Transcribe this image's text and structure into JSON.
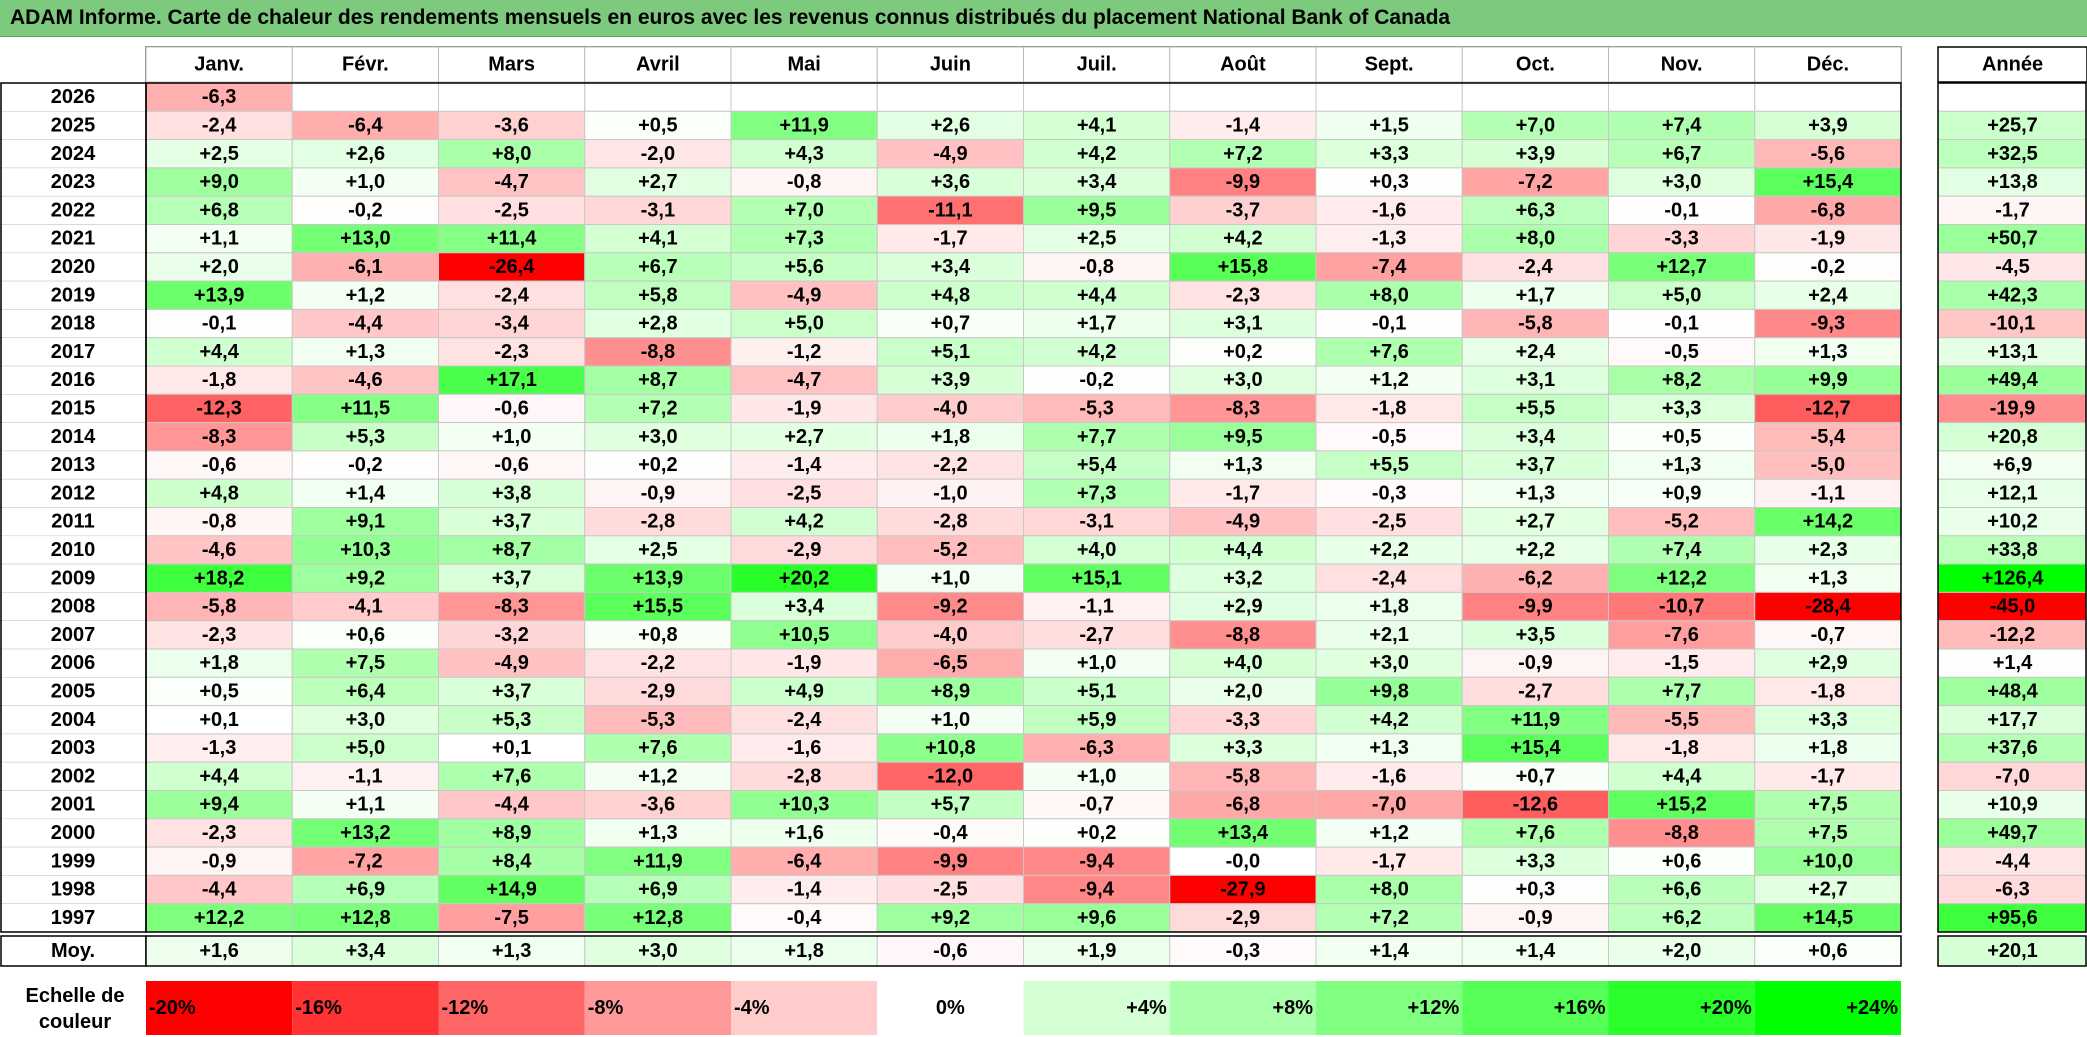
{
  "title": "ADAM Informe. Carte de chaleur des rendements mensuels en euros avec les revenus connus distribués du placement National Bank of Canada",
  "chart_data": {
    "type": "heatmap",
    "months": [
      "Janv.",
      "Févr.",
      "Mars",
      "Avril",
      "Mai",
      "Juin",
      "Juil.",
      "Août",
      "Sept.",
      "Oct.",
      "Nov.",
      "Déc."
    ],
    "year_label": "Année",
    "rows": [
      {
        "year": "2026",
        "values": [
          "-6,3",
          "",
          "",
          "",
          "",
          "",
          "",
          "",
          "",
          "",
          "",
          ""
        ],
        "annual": ""
      },
      {
        "year": "2025",
        "values": [
          "-2,4",
          "-6,4",
          "-3,6",
          "+0,5",
          "+11,9",
          "+2,6",
          "+4,1",
          "-1,4",
          "+1,5",
          "+7,0",
          "+7,4",
          "+3,9"
        ],
        "annual": "+25,7"
      },
      {
        "year": "2024",
        "values": [
          "+2,5",
          "+2,6",
          "+8,0",
          "-2,0",
          "+4,3",
          "-4,9",
          "+4,2",
          "+7,2",
          "+3,3",
          "+3,9",
          "+6,7",
          "-5,6"
        ],
        "annual": "+32,5"
      },
      {
        "year": "2023",
        "values": [
          "+9,0",
          "+1,0",
          "-4,7",
          "+2,7",
          "-0,8",
          "+3,6",
          "+3,4",
          "-9,9",
          "+0,3",
          "-7,2",
          "+3,0",
          "+15,4"
        ],
        "annual": "+13,8"
      },
      {
        "year": "2022",
        "values": [
          "+6,8",
          "-0,2",
          "-2,5",
          "-3,1",
          "+7,0",
          "-11,1",
          "+9,5",
          "-3,7",
          "-1,6",
          "+6,3",
          "-0,1",
          "-6,8"
        ],
        "annual": "-1,7"
      },
      {
        "year": "2021",
        "values": [
          "+1,1",
          "+13,0",
          "+11,4",
          "+4,1",
          "+7,3",
          "-1,7",
          "+2,5",
          "+4,2",
          "-1,3",
          "+8,0",
          "-3,3",
          "-1,9"
        ],
        "annual": "+50,7"
      },
      {
        "year": "2020",
        "values": [
          "+2,0",
          "-6,1",
          "-26,4",
          "+6,7",
          "+5,6",
          "+3,4",
          "-0,8",
          "+15,8",
          "-7,4",
          "-2,4",
          "+12,7",
          "-0,2"
        ],
        "annual": "-4,5"
      },
      {
        "year": "2019",
        "values": [
          "+13,9",
          "+1,2",
          "-2,4",
          "+5,8",
          "-4,9",
          "+4,8",
          "+4,4",
          "-2,3",
          "+8,0",
          "+1,7",
          "+5,0",
          "+2,4"
        ],
        "annual": "+42,3"
      },
      {
        "year": "2018",
        "values": [
          "-0,1",
          "-4,4",
          "-3,4",
          "+2,8",
          "+5,0",
          "+0,7",
          "+1,7",
          "+3,1",
          "-0,1",
          "-5,8",
          "-0,1",
          "-9,3"
        ],
        "annual": "-10,1"
      },
      {
        "year": "2017",
        "values": [
          "+4,4",
          "+1,3",
          "-2,3",
          "-8,8",
          "-1,2",
          "+5,1",
          "+4,2",
          "+0,2",
          "+7,6",
          "+2,4",
          "-0,5",
          "+1,3"
        ],
        "annual": "+13,1"
      },
      {
        "year": "2016",
        "values": [
          "-1,8",
          "-4,6",
          "+17,1",
          "+8,7",
          "-4,7",
          "+3,9",
          "-0,2",
          "+3,0",
          "+1,2",
          "+3,1",
          "+8,2",
          "+9,9"
        ],
        "annual": "+49,4"
      },
      {
        "year": "2015",
        "values": [
          "-12,3",
          "+11,5",
          "-0,6",
          "+7,2",
          "-1,9",
          "-4,0",
          "-5,3",
          "-8,3",
          "-1,8",
          "+5,5",
          "+3,3",
          "-12,7"
        ],
        "annual": "-19,9"
      },
      {
        "year": "2014",
        "values": [
          "-8,3",
          "+5,3",
          "+1,0",
          "+3,0",
          "+2,7",
          "+1,8",
          "+7,7",
          "+9,5",
          "-0,5",
          "+3,4",
          "+0,5",
          "-5,4"
        ],
        "annual": "+20,8"
      },
      {
        "year": "2013",
        "values": [
          "-0,6",
          "-0,2",
          "-0,6",
          "+0,2",
          "-1,4",
          "-2,2",
          "+5,4",
          "+1,3",
          "+5,5",
          "+3,7",
          "+1,3",
          "-5,0"
        ],
        "annual": "+6,9"
      },
      {
        "year": "2012",
        "values": [
          "+4,8",
          "+1,4",
          "+3,8",
          "-0,9",
          "-2,5",
          "-1,0",
          "+7,3",
          "-1,7",
          "-0,3",
          "+1,3",
          "+0,9",
          "-1,1"
        ],
        "annual": "+12,1"
      },
      {
        "year": "2011",
        "values": [
          "-0,8",
          "+9,1",
          "+3,7",
          "-2,8",
          "+4,2",
          "-2,8",
          "-3,1",
          "-4,9",
          "-2,5",
          "+2,7",
          "-5,2",
          "+14,2"
        ],
        "annual": "+10,2"
      },
      {
        "year": "2010",
        "values": [
          "-4,6",
          "+10,3",
          "+8,7",
          "+2,5",
          "-2,9",
          "-5,2",
          "+4,0",
          "+4,4",
          "+2,2",
          "+2,2",
          "+7,4",
          "+2,3"
        ],
        "annual": "+33,8"
      },
      {
        "year": "2009",
        "values": [
          "+18,2",
          "+9,2",
          "+3,7",
          "+13,9",
          "+20,2",
          "+1,0",
          "+15,1",
          "+3,2",
          "-2,4",
          "-6,2",
          "+12,2",
          "+1,3"
        ],
        "annual": "+126,4"
      },
      {
        "year": "2008",
        "values": [
          "-5,8",
          "-4,1",
          "-8,3",
          "+15,5",
          "+3,4",
          "-9,2",
          "-1,1",
          "+2,9",
          "+1,8",
          "-9,9",
          "-10,7",
          "-28,4"
        ],
        "annual": "-45,0"
      },
      {
        "year": "2007",
        "values": [
          "-2,3",
          "+0,6",
          "-3,2",
          "+0,8",
          "+10,5",
          "-4,0",
          "-2,7",
          "-8,8",
          "+2,1",
          "+3,5",
          "-7,6",
          "-0,7"
        ],
        "annual": "-12,2"
      },
      {
        "year": "2006",
        "values": [
          "+1,8",
          "+7,5",
          "-4,9",
          "-2,2",
          "-1,9",
          "-6,5",
          "+1,0",
          "+4,0",
          "+3,0",
          "-0,9",
          "-1,5",
          "+2,9"
        ],
        "annual": "+1,4"
      },
      {
        "year": "2005",
        "values": [
          "+0,5",
          "+6,4",
          "+3,7",
          "-2,9",
          "+4,9",
          "+8,9",
          "+5,1",
          "+2,0",
          "+9,8",
          "-2,7",
          "+7,7",
          "-1,8"
        ],
        "annual": "+48,4"
      },
      {
        "year": "2004",
        "values": [
          "+0,1",
          "+3,0",
          "+5,3",
          "-5,3",
          "-2,4",
          "+1,0",
          "+5,9",
          "-3,3",
          "+4,2",
          "+11,9",
          "-5,5",
          "+3,3"
        ],
        "annual": "+17,7"
      },
      {
        "year": "2003",
        "values": [
          "-1,3",
          "+5,0",
          "+0,1",
          "+7,6",
          "-1,6",
          "+10,8",
          "-6,3",
          "+3,3",
          "+1,3",
          "+15,4",
          "-1,8",
          "+1,8"
        ],
        "annual": "+37,6"
      },
      {
        "year": "2002",
        "values": [
          "+4,4",
          "-1,1",
          "+7,6",
          "+1,2",
          "-2,8",
          "-12,0",
          "+1,0",
          "-5,8",
          "-1,6",
          "+0,7",
          "+4,4",
          "-1,7"
        ],
        "annual": "-7,0"
      },
      {
        "year": "2001",
        "values": [
          "+9,4",
          "+1,1",
          "-4,4",
          "-3,6",
          "+10,3",
          "+5,7",
          "-0,7",
          "-6,8",
          "-7,0",
          "-12,6",
          "+15,2",
          "+7,5"
        ],
        "annual": "+10,9"
      },
      {
        "year": "2000",
        "values": [
          "-2,3",
          "+13,2",
          "+8,9",
          "+1,3",
          "+1,6",
          "-0,4",
          "+0,2",
          "+13,4",
          "+1,2",
          "+7,6",
          "-8,8",
          "+7,5"
        ],
        "annual": "+49,7"
      },
      {
        "year": "1999",
        "values": [
          "-0,9",
          "-7,2",
          "+8,4",
          "+11,9",
          "-6,4",
          "-9,9",
          "-9,4",
          "-0,0",
          "-1,7",
          "+3,3",
          "+0,6",
          "+10,0"
        ],
        "annual": "-4,4"
      },
      {
        "year": "1998",
        "values": [
          "-4,4",
          "+6,9",
          "+14,9",
          "+6,9",
          "-1,4",
          "-2,5",
          "-9,4",
          "-27,9",
          "+8,0",
          "+0,3",
          "+6,6",
          "+2,7"
        ],
        "annual": "-6,3"
      },
      {
        "year": "1997",
        "values": [
          "+12,2",
          "+12,8",
          "-7,5",
          "+12,8",
          "-0,4",
          "+9,2",
          "+9,6",
          "-2,9",
          "+7,2",
          "-0,9",
          "+6,2",
          "+14,5"
        ],
        "annual": "+95,6"
      }
    ],
    "average": {
      "label": "Moy.",
      "values": [
        "+1,6",
        "+3,4",
        "+1,3",
        "+3,0",
        "+1,8",
        "-0,6",
        "+1,9",
        "-0,3",
        "+1,4",
        "+1,4",
        "+2,0",
        "+0,6"
      ],
      "annual": "+20,1"
    },
    "legend": {
      "label_line1": "Echelle de",
      "label_line2": "couleur",
      "items": [
        {
          "label": "-20%",
          "value": -20,
          "align": "left"
        },
        {
          "label": "-16%",
          "value": -16,
          "align": "left"
        },
        {
          "label": "-12%",
          "value": -12,
          "align": "left"
        },
        {
          "label": "-8%",
          "value": -8,
          "align": "left"
        },
        {
          "label": "-4%",
          "value": -4,
          "align": "left"
        },
        {
          "label": "0%",
          "value": 0,
          "align": "center"
        },
        {
          "label": "+4%",
          "value": 4,
          "align": "right"
        },
        {
          "label": "+8%",
          "value": 8,
          "align": "right"
        },
        {
          "label": "+12%",
          "value": 12,
          "align": "right"
        },
        {
          "label": "+16%",
          "value": 16,
          "align": "right"
        },
        {
          "label": "+20%",
          "value": 20,
          "align": "right"
        },
        {
          "label": "+24%",
          "value": 24,
          "align": "right"
        }
      ]
    },
    "color_scale": {
      "min": -20,
      "max": 24,
      "negative_color": "#ff0000",
      "neutral_color": "#ffffff",
      "positive_color": "#00ff00"
    }
  }
}
